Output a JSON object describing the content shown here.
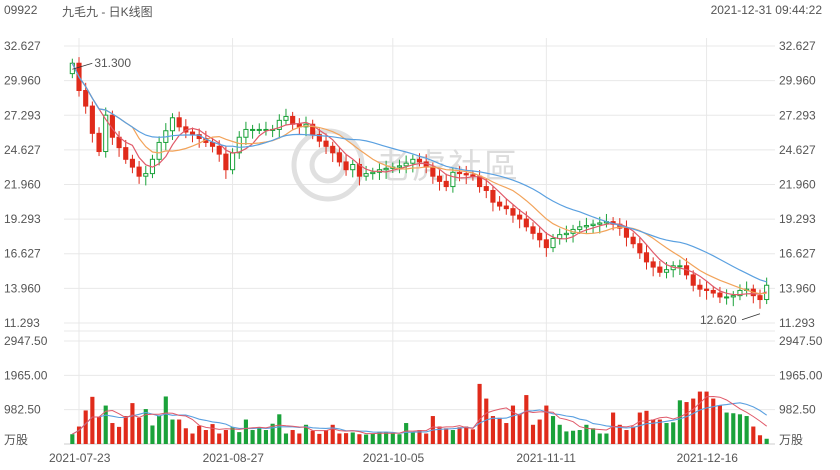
{
  "header": {
    "code": "09922",
    "title": "九毛九 - 日K线图",
    "timestamp": "2021-12-31 09:44:22"
  },
  "watermark": "老虎社區",
  "colors": {
    "up": "#1aa23a",
    "down": "#e02b1b",
    "ma5": "#e05a6a",
    "ma10": "#f2a35a",
    "ma20": "#5aa0e0",
    "vol_ma": "#5aa0e0",
    "grid": "#e8e8e8"
  },
  "chart_data": [
    {
      "type": "candlestick",
      "title": "",
      "y_ticks": [
        "32.627",
        "29.960",
        "27.293",
        "24.627",
        "21.960",
        "19.293",
        "16.627",
        "13.960",
        "11.293"
      ],
      "ylim": [
        11.293,
        32.627
      ],
      "x_ticks": [
        "2021-07-23",
        "2021-08-27",
        "2021-10-05",
        "2021-11-11",
        "2021-12-16"
      ],
      "annotations": {
        "high": "31.300",
        "low": "12.620"
      },
      "closes": [
        31.3,
        29.2,
        28.0,
        25.9,
        24.5,
        27.3,
        25.6,
        24.8,
        23.9,
        23.3,
        22.6,
        22.8,
        23.9,
        25.2,
        26.1,
        27.1,
        26.4,
        26.0,
        25.8,
        25.5,
        25.2,
        24.9,
        24.3,
        23.1,
        24.4,
        25.6,
        26.2,
        26.2,
        26.2,
        26.2,
        26.2,
        26.9,
        27.2,
        26.6,
        26.4,
        26.6,
        25.8,
        25.3,
        24.9,
        24.4,
        23.7,
        23.1,
        23.5,
        22.6,
        22.8,
        22.9,
        23.1,
        23.2,
        23.3,
        23.4,
        23.6,
        23.9,
        23.7,
        23.3,
        22.6,
        22.2,
        21.8,
        22.9,
        22.8,
        22.7,
        22.6,
        21.8,
        21.5,
        20.6,
        20.3,
        20.1,
        19.6,
        19.3,
        18.7,
        18.2,
        17.7,
        17.1,
        17.8,
        18.1,
        18.2,
        18.5,
        18.7,
        18.8,
        18.9,
        19.0,
        19.1,
        18.9,
        18.6,
        17.9,
        17.4,
        16.7,
        16.0,
        15.6,
        15.2,
        15.4,
        15.7,
        15.7,
        15.0,
        14.2,
        13.9,
        13.8,
        13.6,
        13.3,
        13.3,
        13.4,
        13.8,
        13.9,
        13.4,
        13.1,
        14.2
      ],
      "volumes": [
        280,
        500,
        960,
        1350,
        780,
        1100,
        600,
        490,
        800,
        1170,
        750,
        1000,
        530,
        800,
        1360,
        700,
        700,
        450,
        300,
        520,
        400,
        570,
        300,
        400,
        480,
        340,
        700,
        400,
        470,
        400,
        580,
        850,
        300,
        400,
        300,
        550,
        380,
        290,
        400,
        550,
        300,
        310,
        330,
        280,
        270,
        300,
        350,
        330,
        300,
        280,
        600,
        340,
        400,
        300,
        800,
        500,
        450,
        400,
        480,
        500,
        420,
        1720,
        1300,
        800,
        750,
        600,
        1100,
        850,
        1400,
        550,
        700,
        1100,
        800,
        550,
        360,
        380,
        400,
        550,
        450,
        300,
        300,
        900,
        550,
        400,
        500,
        900,
        950,
        700,
        700,
        600,
        620,
        1250,
        1200,
        1300,
        1500,
        1500,
        1300,
        1100,
        900,
        880,
        850,
        800,
        500,
        250,
        150
      ]
    },
    {
      "type": "bar",
      "title": "",
      "unit_label": "万股",
      "y_ticks": [
        "2947.50",
        "1965.00",
        "982.50"
      ],
      "ylim": [
        0,
        2947.5
      ]
    }
  ]
}
